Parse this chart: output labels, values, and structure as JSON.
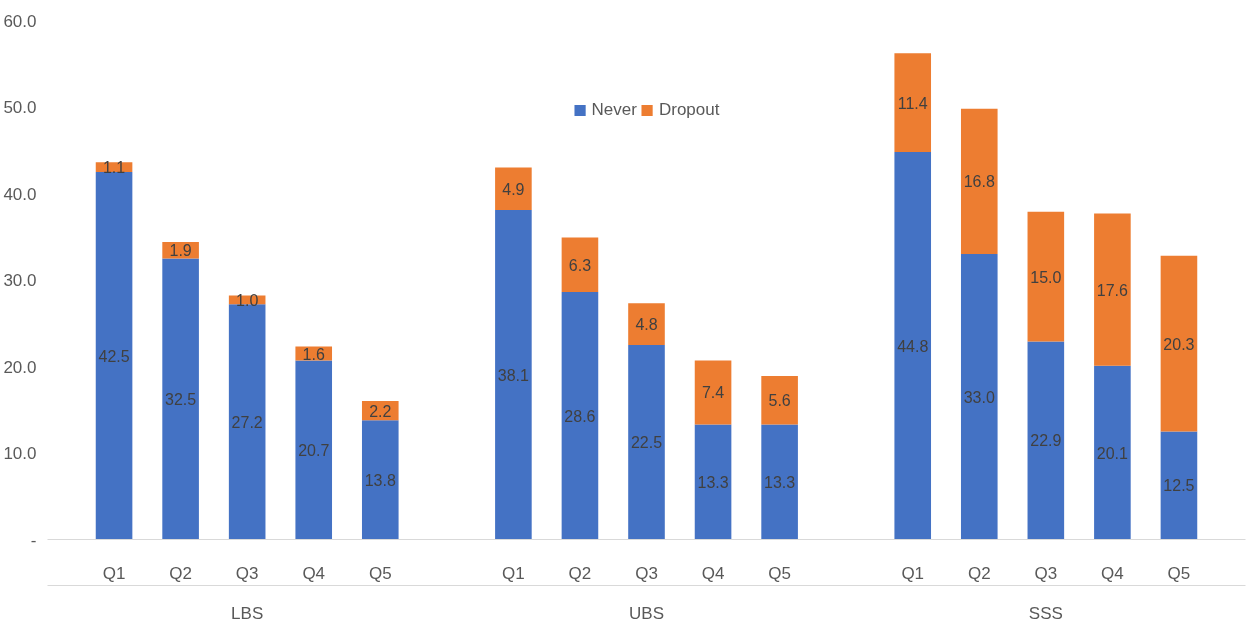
{
  "chart_data": {
    "type": "bar",
    "stacked": true,
    "categories": [
      "Q1",
      "Q2",
      "Q3",
      "Q4",
      "Q5",
      "Q1",
      "Q2",
      "Q3",
      "Q4",
      "Q5",
      "Q1",
      "Q2",
      "Q3",
      "Q4",
      "Q5"
    ],
    "series": [
      {
        "name": "Never",
        "color": "#4472c4",
        "values": [
          42.5,
          32.5,
          27.2,
          20.7,
          13.8,
          38.1,
          28.6,
          22.5,
          13.3,
          13.3,
          44.8,
          33.0,
          22.9,
          20.1,
          12.5
        ],
        "value_labels": [
          "42.5",
          "32.5",
          "27.2",
          "20.7",
          "13.8",
          "38.1",
          "28.6",
          "22.5",
          "13.3",
          "13.3",
          "44.8",
          "33.0",
          "22.9",
          "20.1",
          "12.5"
        ]
      },
      {
        "name": "Dropout",
        "color": "#ed7d31",
        "values": [
          1.1,
          1.9,
          1.0,
          1.6,
          2.2,
          4.9,
          6.3,
          4.8,
          7.4,
          5.6,
          11.4,
          16.8,
          15.0,
          17.6,
          20.3
        ],
        "value_labels": [
          "1.1",
          "1.9",
          "1.0",
          "1.6",
          "2.2",
          "4.9",
          "6.3",
          "4.8",
          "7.4",
          "5.6",
          "11.4",
          "16.8",
          "15.0",
          "17.6",
          "20.3"
        ]
      }
    ],
    "annotations": [
      "LBS",
      "UBS",
      "SSS"
    ],
    "ylim": [
      0,
      60
    ],
    "yticks": [
      {
        "value": 0,
        "label": "-"
      },
      {
        "value": 10,
        "label": "10.0"
      },
      {
        "value": 20,
        "label": "20.0"
      },
      {
        "value": 30,
        "label": "30.0"
      },
      {
        "value": 40,
        "label": "40.0"
      },
      {
        "value": 50,
        "label": "50.0"
      },
      {
        "value": 60,
        "label": "60.0"
      }
    ],
    "grid": false,
    "legend": "top"
  }
}
